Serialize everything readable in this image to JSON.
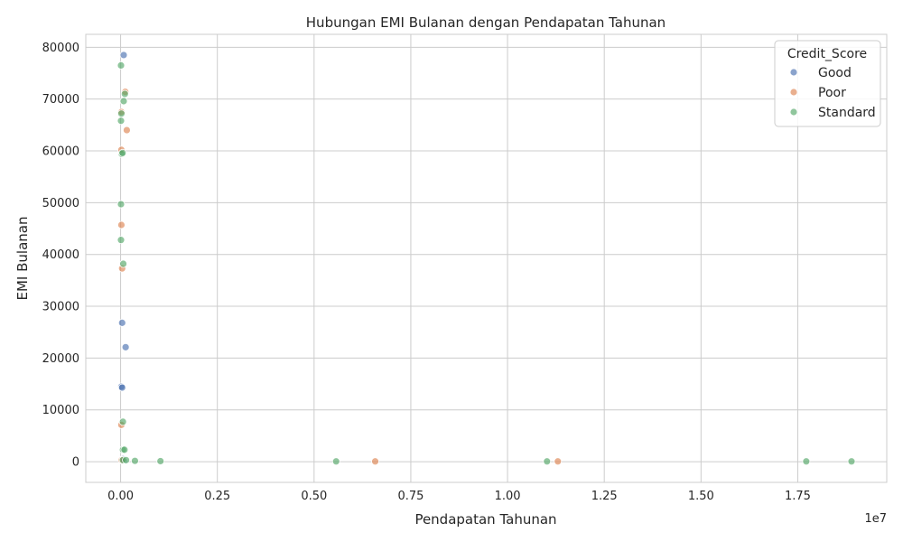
{
  "chart_data": {
    "type": "scatter",
    "title": "Hubungan EMI Bulanan dengan Pendapatan Tahunan",
    "xlabel": "Pendapatan Tahunan",
    "ylabel": "EMI Bulanan",
    "x_offset_label": "1e7",
    "xlim": [
      -900000,
      19800000
    ],
    "ylim": [
      -4000,
      82500
    ],
    "x_ticks": [
      0,
      2500000,
      5000000,
      7500000,
      10000000,
      12500000,
      15000000,
      17500000
    ],
    "x_tick_labels": [
      "0.00",
      "0.25",
      "0.50",
      "0.75",
      "1.00",
      "1.25",
      "1.50",
      "1.75"
    ],
    "y_ticks": [
      0,
      10000,
      20000,
      30000,
      40000,
      50000,
      60000,
      70000,
      80000
    ],
    "y_tick_labels": [
      "0",
      "10000",
      "20000",
      "30000",
      "40000",
      "50000",
      "60000",
      "70000",
      "80000"
    ],
    "grid": true,
    "legend": {
      "title": "Credit_Score",
      "placement": "top-right"
    },
    "series": [
      {
        "name": "Good",
        "color": "#4c72b0",
        "points": [
          [
            80000,
            78500
          ],
          [
            40000,
            26800
          ],
          [
            130000,
            22100
          ],
          [
            20000,
            14500
          ],
          [
            40000,
            14300
          ],
          [
            60000,
            500
          ],
          [
            90000,
            200
          ]
        ]
      },
      {
        "name": "Poor",
        "color": "#dd8452",
        "points": [
          [
            120000,
            71400
          ],
          [
            20000,
            67500
          ],
          [
            160000,
            64000
          ],
          [
            20000,
            60200
          ],
          [
            20000,
            45700
          ],
          [
            40000,
            37300
          ],
          [
            20000,
            7100
          ],
          [
            30000,
            300
          ],
          [
            6580000,
            50
          ],
          [
            11300000,
            50
          ]
        ]
      },
      {
        "name": "Standard",
        "color": "#55a868",
        "points": [
          [
            10000,
            76500
          ],
          [
            110000,
            71000
          ],
          [
            80000,
            69600
          ],
          [
            20000,
            67200
          ],
          [
            10000,
            65800
          ],
          [
            30000,
            59400
          ],
          [
            50000,
            59600
          ],
          [
            10000,
            49700
          ],
          [
            10000,
            42800
          ],
          [
            70000,
            38200
          ],
          [
            60000,
            7700
          ],
          [
            60000,
            2300
          ],
          [
            100000,
            2300
          ],
          [
            60000,
            300
          ],
          [
            140000,
            300
          ],
          [
            370000,
            150
          ],
          [
            1030000,
            100
          ],
          [
            5570000,
            50
          ],
          [
            11020000,
            50
          ],
          [
            17720000,
            50
          ],
          [
            18890000,
            50
          ]
        ]
      }
    ]
  }
}
